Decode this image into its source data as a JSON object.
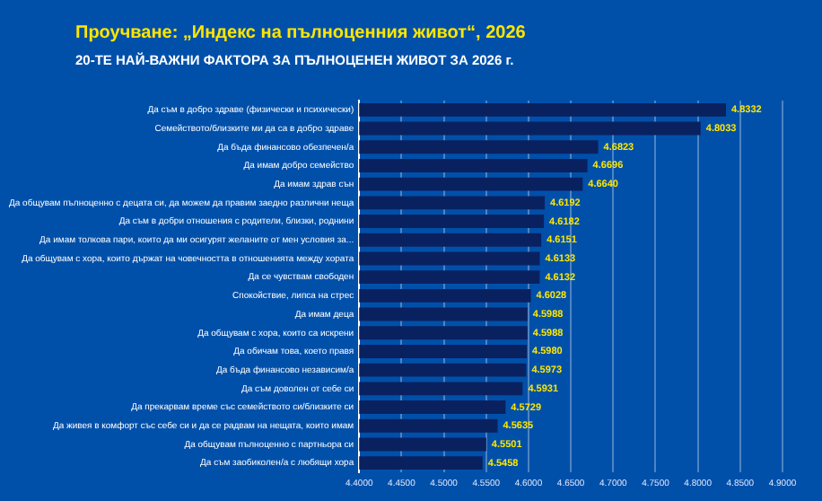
{
  "chart_data": {
    "type": "bar",
    "orientation": "horizontal",
    "title": "Проучване: „Индекс на пълноценния живот“, 2026",
    "subtitle": "20-ТЕ НАЙ-ВАЖНИ ФАКТОРА ЗА ПЪЛНОЦЕНЕН ЖИВОТ ЗА 2026 г.",
    "categories": [
      "Да съм в добро здраве (физически и психически)",
      "Семейството/близките ми да са в добро здраве",
      "Да бъда финансово обезпечен/а",
      "Да имам добро семейство",
      "Да имам здрав сън",
      "Да общувам пълноценно с децата си, да можем да правим заедно различни неща",
      "Да съм в добри отношения с родители, близки, роднини",
      "Да имам толкова пари, които да ми осигурят желаните от мен условия за...",
      "Да общувам с хора, които държат на човечността в отношенията между хората",
      "Да се чувствам свободен",
      "Спокойствие, липса на стрес",
      "Да имам деца",
      "Да общувам с хора, които са искрени",
      "Да обичам това, което правя",
      "Да бъда финансово независим/а",
      "Да съм доволен от себе си",
      "Да прекарвам време със семейството си/близките си",
      "Да живея в комфорт със себе си и да се радвам на нещата, които имам",
      "Да общувам пълноценно с партньора си",
      "Да съм заобиколен/а с любящи хора"
    ],
    "values": [
      4.8332,
      4.8033,
      4.6823,
      4.6696,
      4.664,
      4.6192,
      4.6182,
      4.6151,
      4.6133,
      4.6132,
      4.6028,
      4.5988,
      4.5988,
      4.598,
      4.5973,
      4.5931,
      4.5729,
      4.5635,
      4.5501,
      4.5458
    ],
    "value_labels": [
      "4.8332",
      "4.8033",
      "4.6823",
      "4.6696",
      "4.6640",
      "4.6192",
      "4.6182",
      "4.6151",
      "4.6133",
      "4.6132",
      "4.6028",
      "4.5988",
      "4.5988",
      "4.5980",
      "4.5973",
      "4.5931",
      "4.5729",
      "4.5635",
      "4.5501",
      "4.5458"
    ],
    "color": "#0a2160",
    "xlim": [
      4.4,
      4.9
    ],
    "xticks": [
      {
        "value": 4.4,
        "label": "4.4000"
      },
      {
        "value": 4.45,
        "label": "4.4500"
      },
      {
        "value": 4.5,
        "label": "4.5000"
      },
      {
        "value": 4.55,
        "label": "4.5500"
      },
      {
        "value": 4.6,
        "label": "4.6000"
      },
      {
        "value": 4.65,
        "label": "4.6500"
      },
      {
        "value": 4.7,
        "label": "4.7000"
      },
      {
        "value": 4.75,
        "label": "4.7500"
      },
      {
        "value": 4.8,
        "label": "4.8000"
      },
      {
        "value": 4.85,
        "label": "4.8500"
      },
      {
        "value": 4.9,
        "label": "4.9000"
      }
    ],
    "grid": "x"
  }
}
